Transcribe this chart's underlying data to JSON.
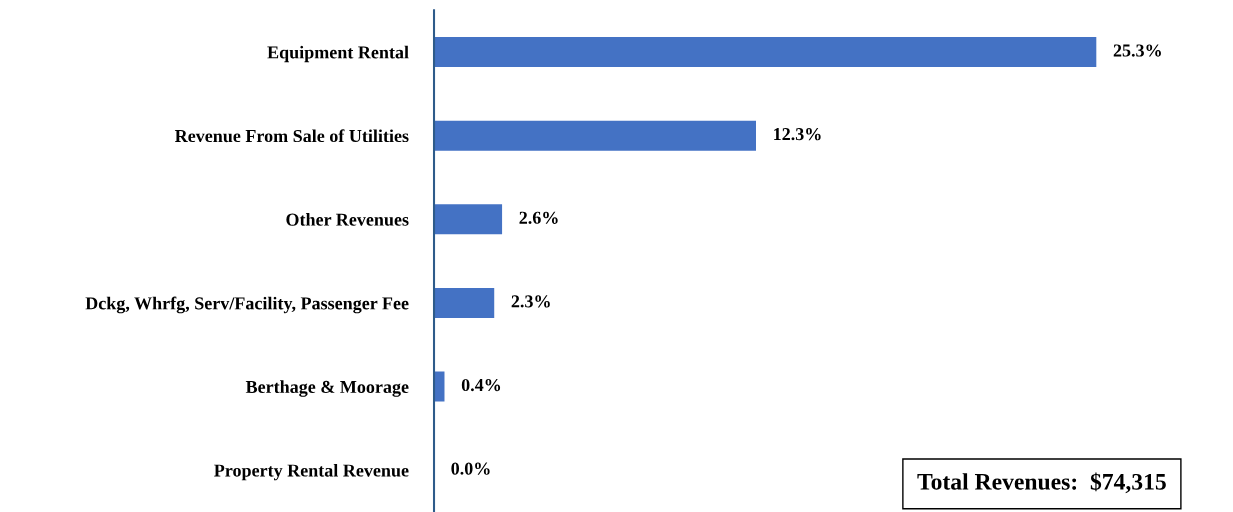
{
  "chart_data": {
    "type": "bar",
    "orientation": "horizontal",
    "categories": [
      "Equipment Rental",
      "Revenue From Sale of Utilities",
      "Other Revenues",
      "Dckg, Whrfg, Serv/Facility, Passenger Fee",
      "Berthage & Moorage",
      "Property Rental Revenue"
    ],
    "values": [
      25.3,
      12.3,
      2.6,
      2.3,
      0.4,
      0.0
    ],
    "value_labels": [
      "25.3%",
      "12.3%",
      "2.6%",
      "2.3%",
      "0.4%",
      "0.0%"
    ],
    "color": "#4472c4",
    "tick_labels": "y",
    "grid": false,
    "legend": false,
    "annotations": [
      "Total Revenues:  $74,315"
    ]
  }
}
